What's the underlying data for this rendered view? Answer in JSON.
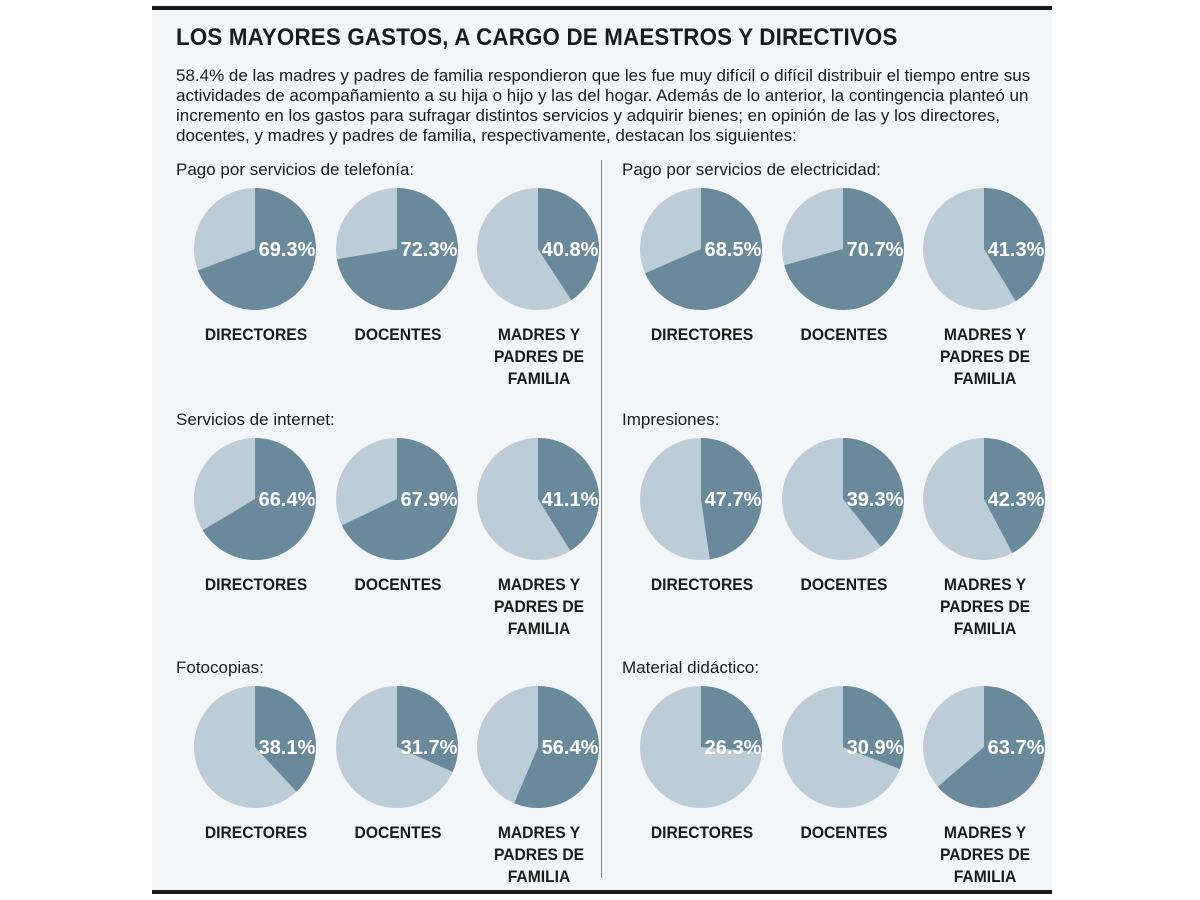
{
  "title": "LOS MAYORES GASTOS, A CARGO DE MAESTROS Y DIRECTIVOS",
  "intro": "58.4% de las madres y padres de familia respondieron que les fue muy difícil o difícil distribuir el tiempo entre sus actividades de acompañamiento a su hija o hijo y las del hogar. Además de lo anterior, la contingencia planteó un incremento en los gastos para sufragar distintos servicios y adquirir bienes; en opinión de las y los directores, docentes, y madres y padres de familia, respectivamente, destacan los siguientes:",
  "colors": {
    "highlight": "#6a8a9b",
    "remainder": "#bccdd8",
    "text_on_pie": "#ffffff"
  },
  "categories": [
    "DIRECTORES",
    "DOCENTES",
    "MADRES Y PADRES DE FAMILIA"
  ],
  "chart_data": [
    {
      "type": "pie",
      "title": "Pago por servicios de telefonía:",
      "categories": [
        "DIRECTORES",
        "DOCENTES",
        "MADRES Y PADRES DE FAMILIA"
      ],
      "values": [
        69.3,
        72.3,
        40.8
      ],
      "labels": [
        "69.3%",
        "72.3%",
        "40.8%"
      ]
    },
    {
      "type": "pie",
      "title": "Pago por servicios de electricidad:",
      "categories": [
        "DIRECTORES",
        "DOCENTES",
        "MADRES Y PADRES DE FAMILIA"
      ],
      "values": [
        68.5,
        70.7,
        41.3
      ],
      "labels": [
        "68.5%",
        "70.7%",
        "41.3%"
      ]
    },
    {
      "type": "pie",
      "title": "Servicios de internet:",
      "categories": [
        "DIRECTORES",
        "DOCENTES",
        "MADRES Y PADRES DE FAMILIA"
      ],
      "values": [
        66.4,
        67.9,
        41.1
      ],
      "labels": [
        "66.4%",
        "67.9%",
        "41.1%"
      ]
    },
    {
      "type": "pie",
      "title": "Impresiones:",
      "categories": [
        "DIRECTORES",
        "DOCENTES",
        "MADRES Y PADRES DE FAMILIA"
      ],
      "values": [
        47.7,
        39.3,
        42.3
      ],
      "labels": [
        "47.7%",
        "39.3%",
        "42.3%"
      ]
    },
    {
      "type": "pie",
      "title": "Fotocopias:",
      "categories": [
        "DIRECTORES",
        "DOCENTES",
        "MADRES Y PADRES DE FAMILIA"
      ],
      "values": [
        38.1,
        31.7,
        56.4
      ],
      "labels": [
        "38.1%",
        "31.7%",
        "56.4%"
      ]
    },
    {
      "type": "pie",
      "title": "Material didáctico:",
      "categories": [
        "DIRECTORES",
        "DOCENTES",
        "MADRES Y PADRES DE FAMILIA"
      ],
      "values": [
        26.3,
        30.9,
        63.7
      ],
      "labels": [
        "26.3%",
        "30.9%",
        "63.7%"
      ]
    }
  ]
}
